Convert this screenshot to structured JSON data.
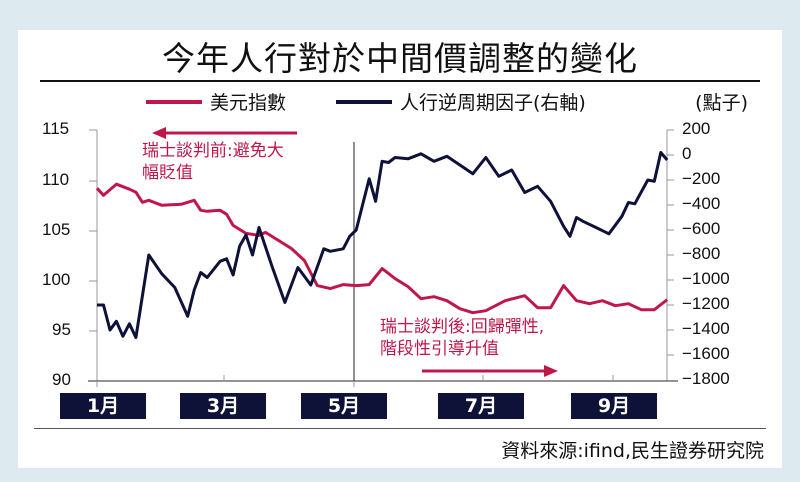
{
  "title": "今年人行對於中間價調整的變化",
  "unit_label": "(點子)",
  "legend": [
    {
      "label": "美元指數",
      "color": "#c0174a"
    },
    {
      "label": "人行逆周期因子(右軸)",
      "color": "#0f1238"
    }
  ],
  "annotations": {
    "before": "瑞士談判前:避免大幅貶值",
    "before_line1": "瑞士談判前:避免大",
    "before_line2": "幅貶值",
    "after_line1": "瑞士談判後:回歸彈性,",
    "after_line2": "階段性引導升值"
  },
  "x_labels": [
    "1月",
    "3月",
    "5月",
    "7月",
    "9月"
  ],
  "left_axis_ticks": [
    "115",
    "110",
    "105",
    "100",
    "95",
    "90"
  ],
  "right_axis_ticks": [
    "200",
    "0",
    "−200",
    "−400",
    "−600",
    "−800",
    "−1000",
    "−1200",
    "−1400",
    "−1600",
    "−1800"
  ],
  "source": "資料來源:ifind,民生證券研究院",
  "chart_data": {
    "type": "line",
    "title": "今年人行對於中間價調整的變化",
    "xlabel": "",
    "ylabel": "美元指數",
    "ylabel_right": "人行逆周期因子 (點子)",
    "ylim": [
      90,
      115
    ],
    "ylim_right": [
      -1800,
      200
    ],
    "x_ticks": [
      "1月",
      "3月",
      "5月",
      "7月",
      "9月"
    ],
    "legend_position": "top",
    "grid": false,
    "annotations": [
      {
        "text": "瑞士談判前:避免大幅貶值",
        "arrow": "left",
        "position": "upper-left"
      },
      {
        "text": "瑞士談判後:回歸彈性,階段性引導升值",
        "arrow": "right",
        "position": "lower-middle"
      },
      {
        "text": "vertical line marking start of May",
        "x": "5月"
      }
    ],
    "series": [
      {
        "name": "美元指數",
        "axis": "left",
        "x_month": [
          1.0,
          1.1,
          1.3,
          1.5,
          1.6,
          1.7,
          1.8,
          2.0,
          2.3,
          2.5,
          2.6,
          2.7,
          2.9,
          3.0,
          3.1,
          3.3,
          3.5,
          3.6,
          3.8,
          4.0,
          4.2,
          4.4,
          4.6,
          4.8,
          5.0,
          5.2,
          5.4,
          5.6,
          5.8,
          6.0,
          6.2,
          6.4,
          6.6,
          6.8,
          7.0,
          7.3,
          7.6,
          7.8,
          8.0,
          8.2,
          8.4,
          8.6,
          8.8,
          9.0,
          9.2,
          9.4,
          9.6,
          9.8
        ],
        "values": [
          109.2,
          108.5,
          109.6,
          109.1,
          108.8,
          107.8,
          108.0,
          107.5,
          107.6,
          108.0,
          107.0,
          106.9,
          107.0,
          106.6,
          105.5,
          104.7,
          104.5,
          104.8,
          104.0,
          103.2,
          102.0,
          99.5,
          99.2,
          99.6,
          99.5,
          99.6,
          101.2,
          100.2,
          99.4,
          98.2,
          98.4,
          98.0,
          97.2,
          96.8,
          97.0,
          98.0,
          98.5,
          97.3,
          97.3,
          99.5,
          98.0,
          97.7,
          98.0,
          97.5,
          97.7,
          97.1,
          97.1,
          98.1
        ]
      },
      {
        "name": "人行逆周期因子(右軸)",
        "axis": "right",
        "x_month": [
          1.0,
          1.1,
          1.2,
          1.3,
          1.4,
          1.5,
          1.6,
          1.8,
          2.0,
          2.2,
          2.4,
          2.5,
          2.6,
          2.7,
          2.9,
          3.0,
          3.1,
          3.2,
          3.3,
          3.4,
          3.5,
          3.7,
          3.9,
          4.1,
          4.3,
          4.5,
          4.6,
          4.8,
          4.9,
          5.0,
          5.2,
          5.3,
          5.4,
          5.5,
          5.6,
          5.8,
          6.0,
          6.2,
          6.4,
          6.6,
          6.8,
          7.0,
          7.2,
          7.4,
          7.6,
          7.8,
          8.0,
          8.2,
          8.3,
          8.4,
          8.5,
          8.7,
          8.9,
          9.1,
          9.2,
          9.3,
          9.5,
          9.6,
          9.7,
          9.8
        ],
        "values": [
          -1200,
          -1200,
          -1400,
          -1330,
          -1450,
          -1350,
          -1460,
          -800,
          -950,
          -1060,
          -1290,
          -1080,
          -940,
          -980,
          -850,
          -830,
          -960,
          -730,
          -640,
          -800,
          -580,
          -890,
          -1180,
          -900,
          -1040,
          -750,
          -770,
          -750,
          -650,
          -600,
          -190,
          -370,
          -50,
          -60,
          -20,
          -30,
          10,
          -50,
          -10,
          -80,
          -150,
          -20,
          -170,
          -120,
          -300,
          -250,
          -370,
          -570,
          -650,
          -500,
          -530,
          -580,
          -630,
          -490,
          -380,
          -390,
          -200,
          -210,
          20,
          -40
        ]
      }
    ]
  }
}
